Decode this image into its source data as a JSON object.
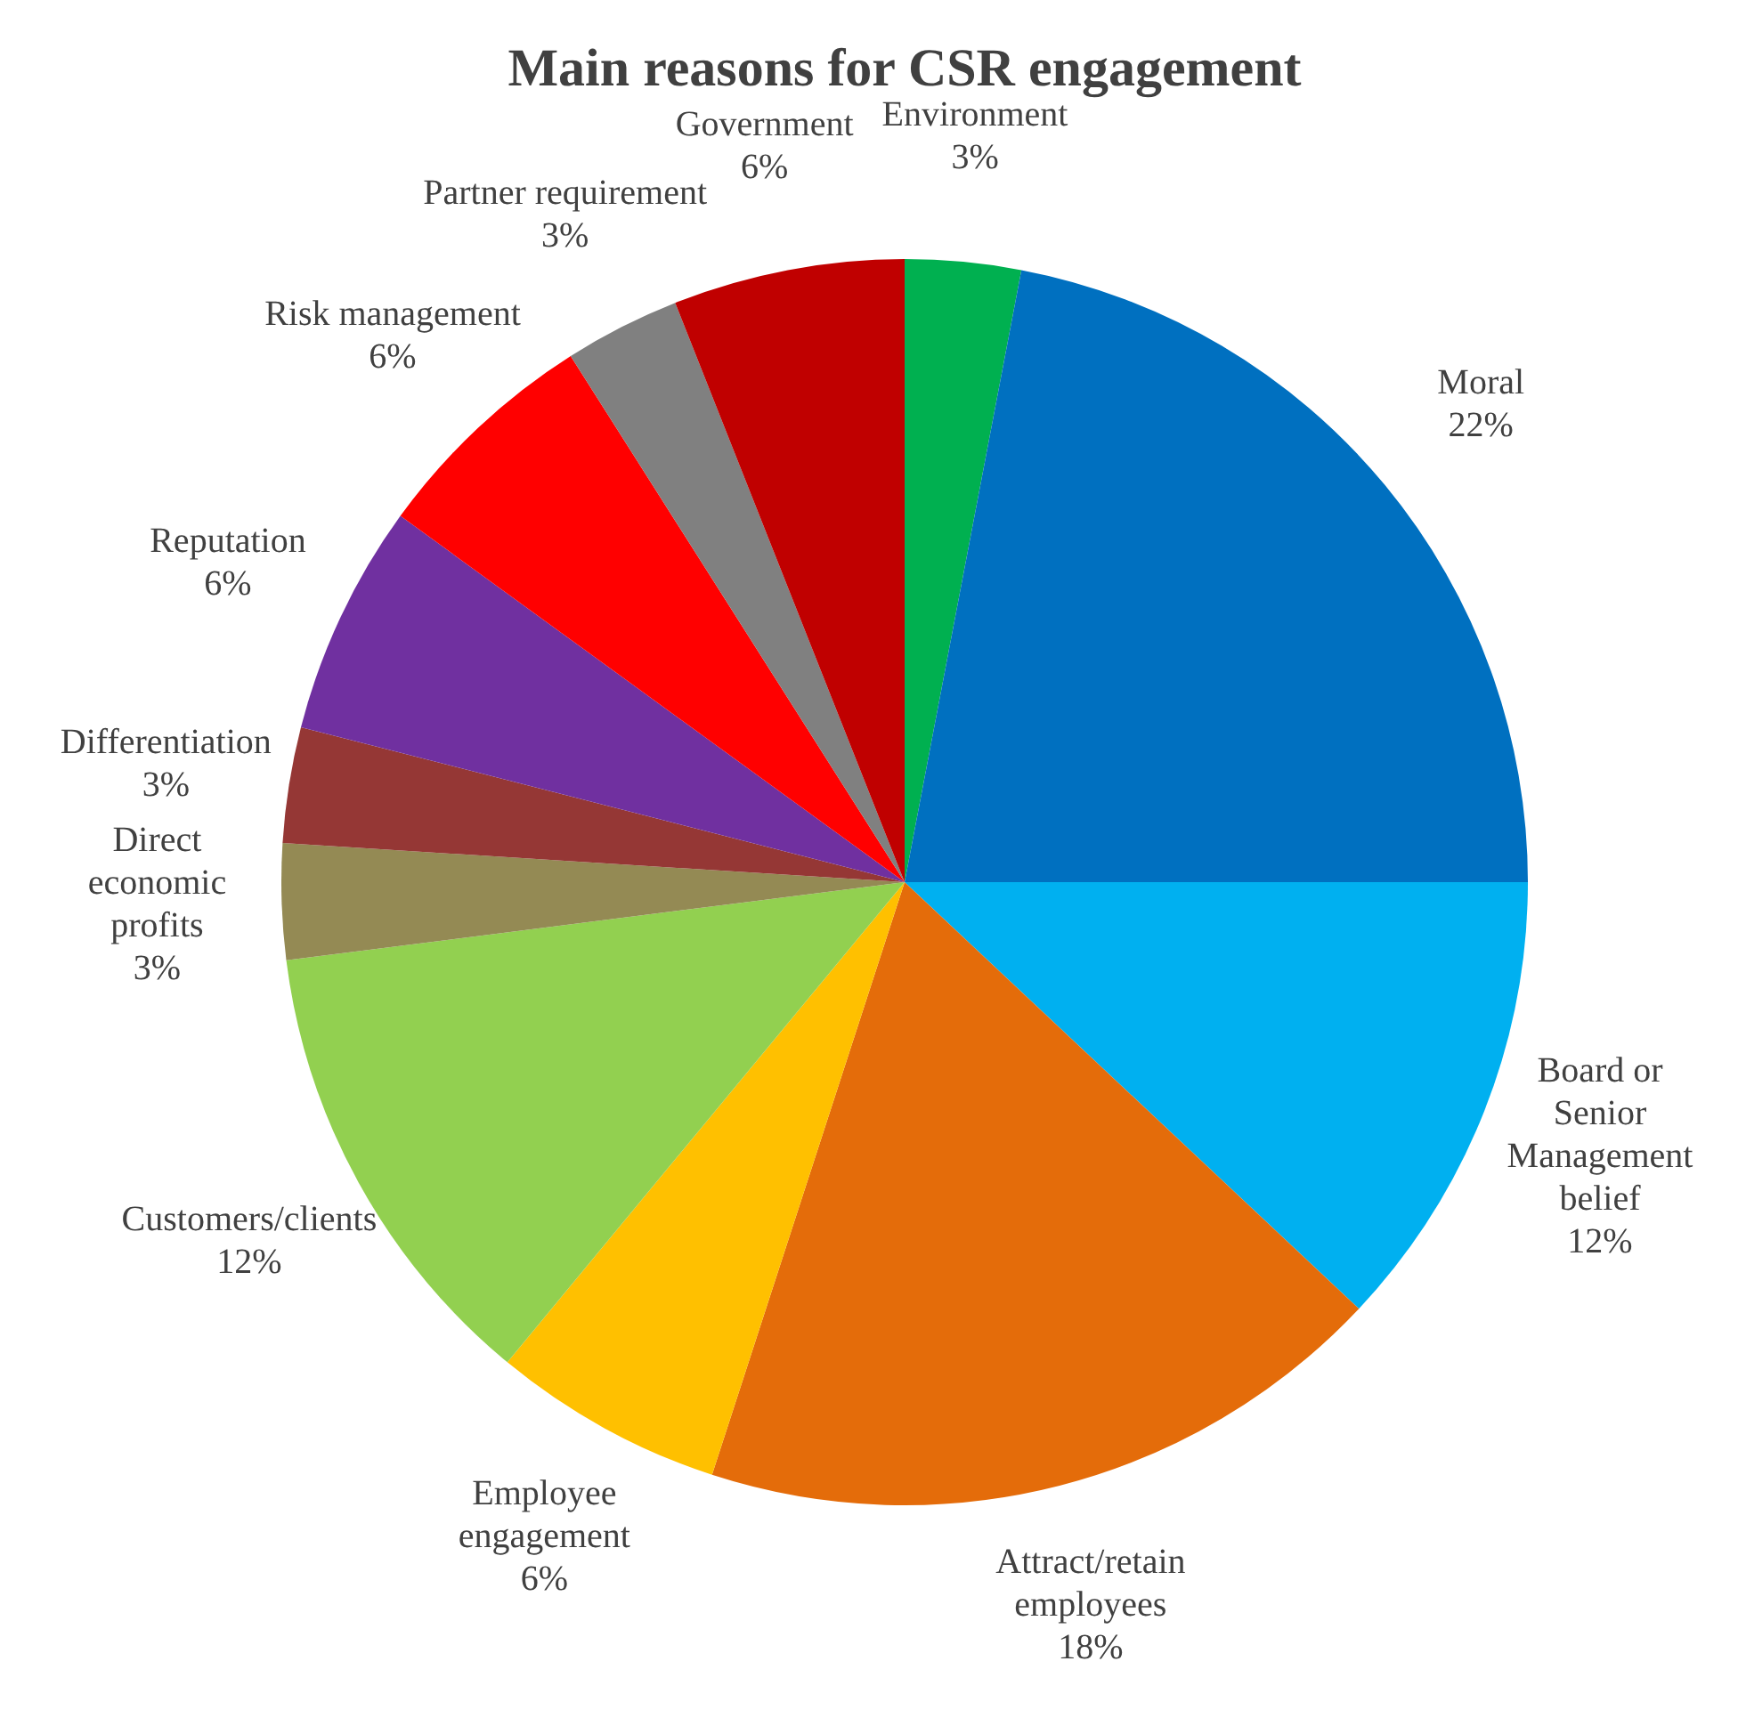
{
  "chart_data": {
    "type": "pie",
    "title": "Main reasons for CSR engagement",
    "categories": [
      "Environment",
      "Moral",
      "Board or Senior Management belief",
      "Attract/retain employees",
      "Employee engagement",
      "Customers/clients",
      "Direct economic profits",
      "Differentiation",
      "Reputation",
      "Risk management",
      "Partner requirement",
      "Government"
    ],
    "values": [
      3,
      22,
      12,
      18,
      6,
      12,
      3,
      3,
      6,
      6,
      3,
      6
    ],
    "value_labels": [
      "3%",
      "22%",
      "12%",
      "18%",
      "6%",
      "12%",
      "3%",
      "3%",
      "6%",
      "6%",
      "3%",
      "6%"
    ],
    "colors": [
      "#00b050",
      "#0070c0",
      "#00b0f0",
      "#e46c0a",
      "#ffc000",
      "#92d050",
      "#948a54",
      "#953735",
      "#7030a0",
      "#ff0000",
      "#808080",
      "#c00000"
    ],
    "legend": false
  }
}
